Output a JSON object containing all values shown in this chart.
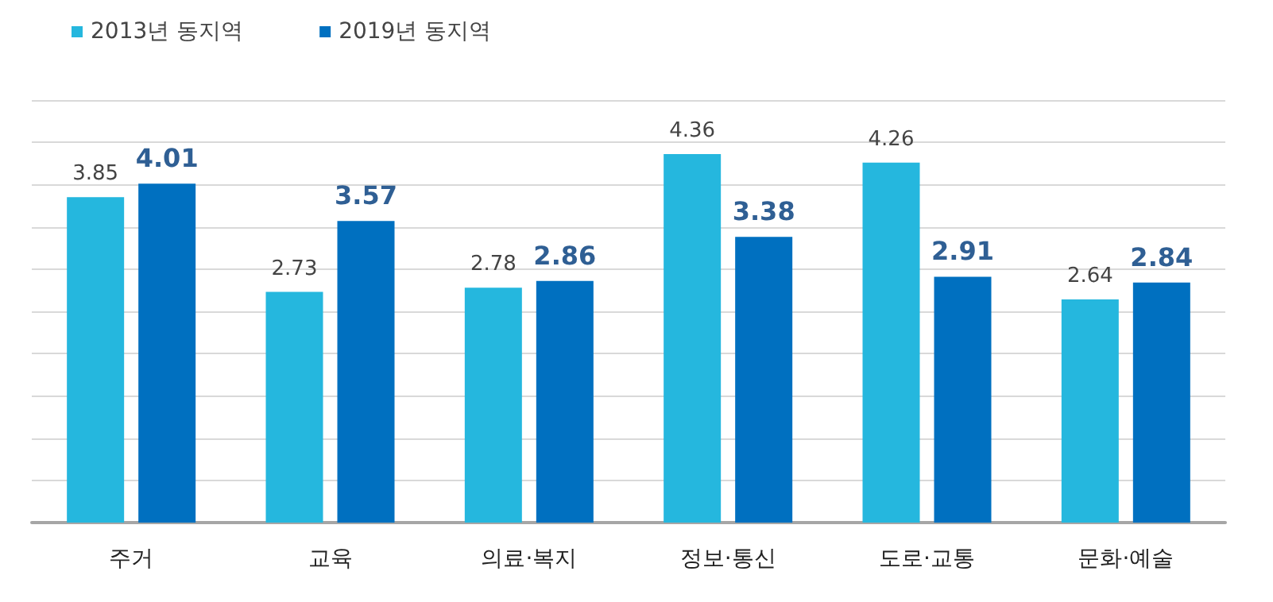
{
  "chart_data": {
    "type": "bar",
    "categories": [
      "주거",
      "교육",
      "의료·복지",
      "정보·통신",
      "도로·교통",
      "문화·예술"
    ],
    "series": [
      {
        "name": "2013년 동지역",
        "color": "#25b7de",
        "values": [
          3.85,
          2.73,
          2.78,
          4.36,
          4.26,
          2.64
        ]
      },
      {
        "name": "2019년 동지역",
        "color": "#0070c0",
        "values": [
          4.01,
          3.57,
          2.86,
          3.38,
          2.91,
          2.84
        ]
      }
    ],
    "ylim": [
      0,
      5
    ],
    "yticks": [
      {
        "value": 0,
        "label": null
      },
      {
        "value": 0.5,
        "label": null
      },
      {
        "value": 1,
        "label": null
      },
      {
        "value": 1.5,
        "label": null
      },
      {
        "value": 2,
        "label": null
      },
      {
        "value": 2.5,
        "label": null
      },
      {
        "value": 3,
        "label": null
      },
      {
        "value": 3.5,
        "label": null
      },
      {
        "value": 4,
        "label": null
      },
      {
        "value": 4.5,
        "label": null
      },
      {
        "value": 5,
        "label": null
      }
    ],
    "tick_labels": "x",
    "grid": "y",
    "legend": "top left",
    "data_labels": true
  }
}
